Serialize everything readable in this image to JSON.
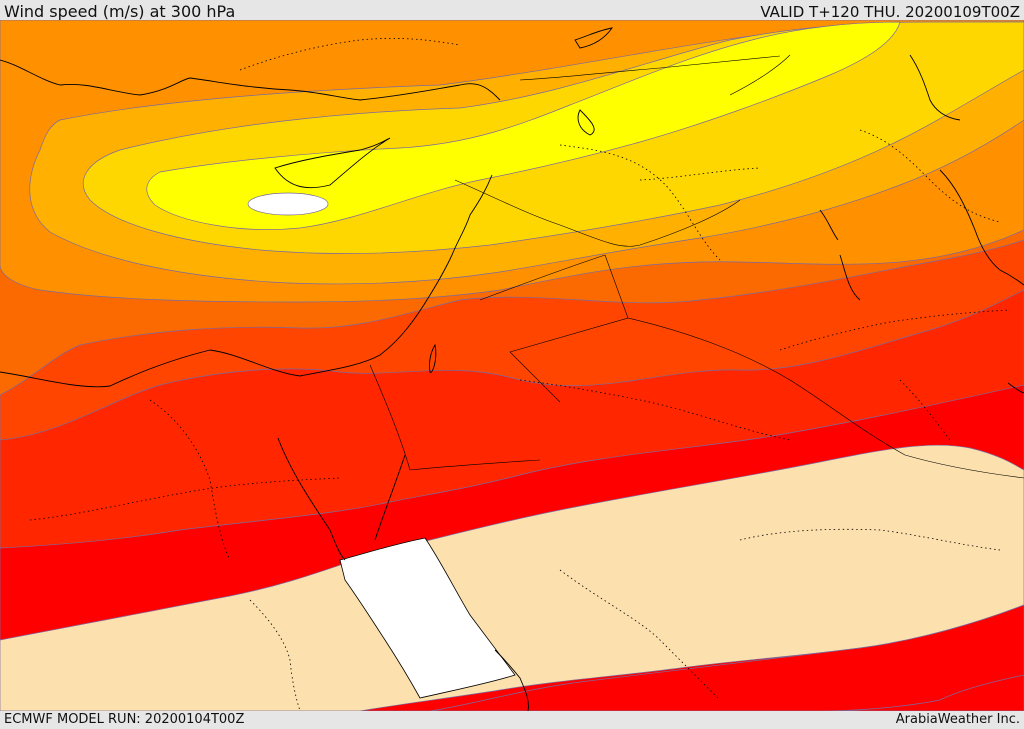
{
  "header": {
    "title": "Wind speed (m/s) at 300 hPa",
    "valid": "VALID T+120 THU. 20200109T00Z"
  },
  "footer": {
    "model_run": "ECMWF MODEL RUN: 20200104T00Z",
    "brand": "ArabiaWeather Inc."
  },
  "map": {
    "colors": {
      "orange_dark": "#fb6a00",
      "orange": "#ff9000",
      "orange_light": "#ffb000",
      "gold": "#ffd700",
      "yellow": "#ffff00",
      "red_orange": "#ff4500",
      "red_mid": "#ff2600",
      "red": "#ff0000",
      "tan": "#fce0ad",
      "white": "#ffffff"
    }
  }
}
